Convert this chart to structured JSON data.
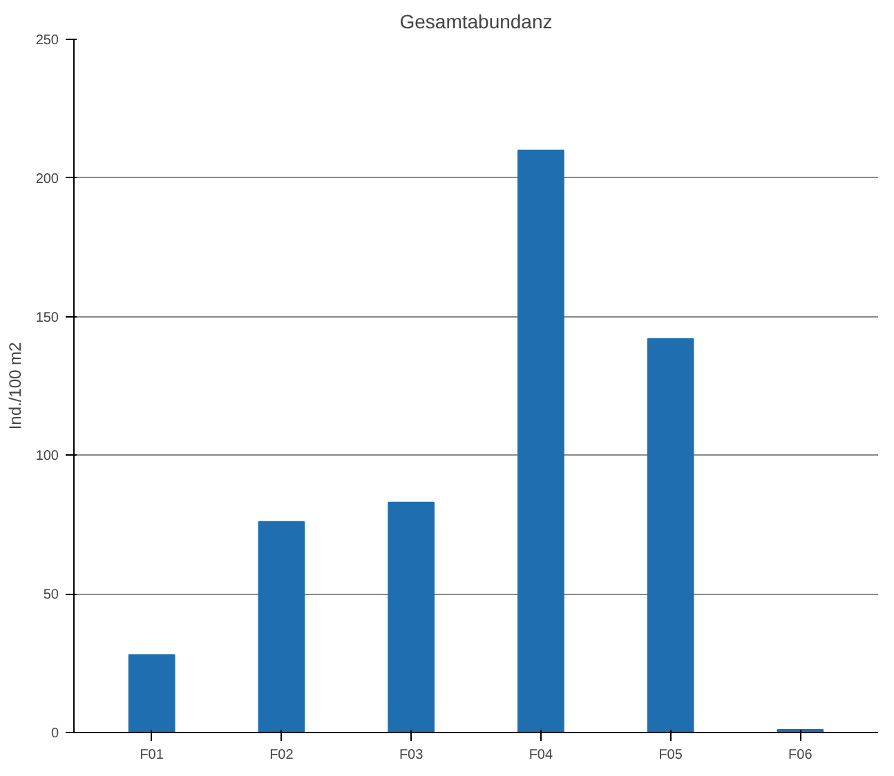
{
  "chart_data": {
    "type": "bar",
    "title": "Gesamtabundanz",
    "ylabel": "Ind./100 m2",
    "categories": [
      "F01",
      "F02",
      "F03",
      "F04",
      "F05",
      "F06"
    ],
    "values": [
      28,
      76,
      83,
      210,
      142,
      1
    ],
    "color": "#1f6fb0",
    "ylim": [
      0,
      250
    ],
    "yticks": [
      0,
      50,
      100,
      150,
      200,
      250
    ],
    "grid": "y"
  }
}
